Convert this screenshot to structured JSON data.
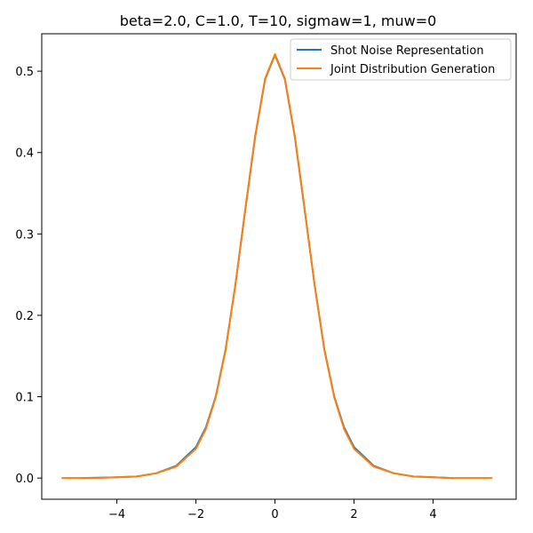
{
  "chart_data": {
    "type": "line",
    "title": "beta=2.0, C=1.0, T=10, sigmaw=1, muw=0",
    "xlabel": "",
    "ylabel": "",
    "xlim": [
      -5.9,
      6.1
    ],
    "ylim": [
      -0.026,
      0.546
    ],
    "xticks": [
      -4,
      -2,
      0,
      2,
      4
    ],
    "xtick_labels": [
      "−4",
      "−2",
      "0",
      "2",
      "4"
    ],
    "yticks": [
      0.0,
      0.1,
      0.2,
      0.3,
      0.4,
      0.5
    ],
    "ytick_labels": [
      "0.0",
      "0.1",
      "0.2",
      "0.3",
      "0.4",
      "0.5"
    ],
    "grid": false,
    "legend_position": "top-right",
    "series": [
      {
        "name": "Shot Noise Representation",
        "color": "#1f77b4",
        "x": [
          -4.9,
          -4.0,
          -3.5,
          -3.0,
          -2.5,
          -2.0,
          -1.75,
          -1.5,
          -1.25,
          -1.0,
          -0.75,
          -0.5,
          -0.25,
          0.0,
          0.25,
          0.5,
          0.75,
          1.0,
          1.25,
          1.5,
          1.75,
          2.0,
          2.5,
          3.0,
          3.5,
          4.0,
          4.5
        ],
        "y": [
          0.0,
          0.001,
          0.002,
          0.006,
          0.015,
          0.038,
          0.062,
          0.1,
          0.158,
          0.238,
          0.33,
          0.42,
          0.49,
          0.52,
          0.49,
          0.42,
          0.33,
          0.238,
          0.158,
          0.1,
          0.062,
          0.038,
          0.015,
          0.006,
          0.002,
          0.001,
          0.0
        ]
      },
      {
        "name": "Joint Distribution Generation",
        "color": "#ff7f0e",
        "x": [
          -5.4,
          -4.5,
          -4.0,
          -3.5,
          -3.0,
          -2.5,
          -2.0,
          -1.75,
          -1.5,
          -1.25,
          -1.0,
          -0.75,
          -0.5,
          -0.25,
          0.0,
          0.25,
          0.5,
          0.75,
          1.0,
          1.25,
          1.5,
          1.75,
          2.0,
          2.5,
          3.0,
          3.5,
          4.0,
          4.5,
          5.5
        ],
        "y": [
          0.0,
          0.0,
          0.001,
          0.002,
          0.006,
          0.014,
          0.036,
          0.06,
          0.099,
          0.157,
          0.238,
          0.331,
          0.421,
          0.491,
          0.521,
          0.491,
          0.421,
          0.331,
          0.238,
          0.157,
          0.099,
          0.06,
          0.036,
          0.014,
          0.006,
          0.002,
          0.001,
          0.0,
          0.0
        ]
      }
    ]
  }
}
